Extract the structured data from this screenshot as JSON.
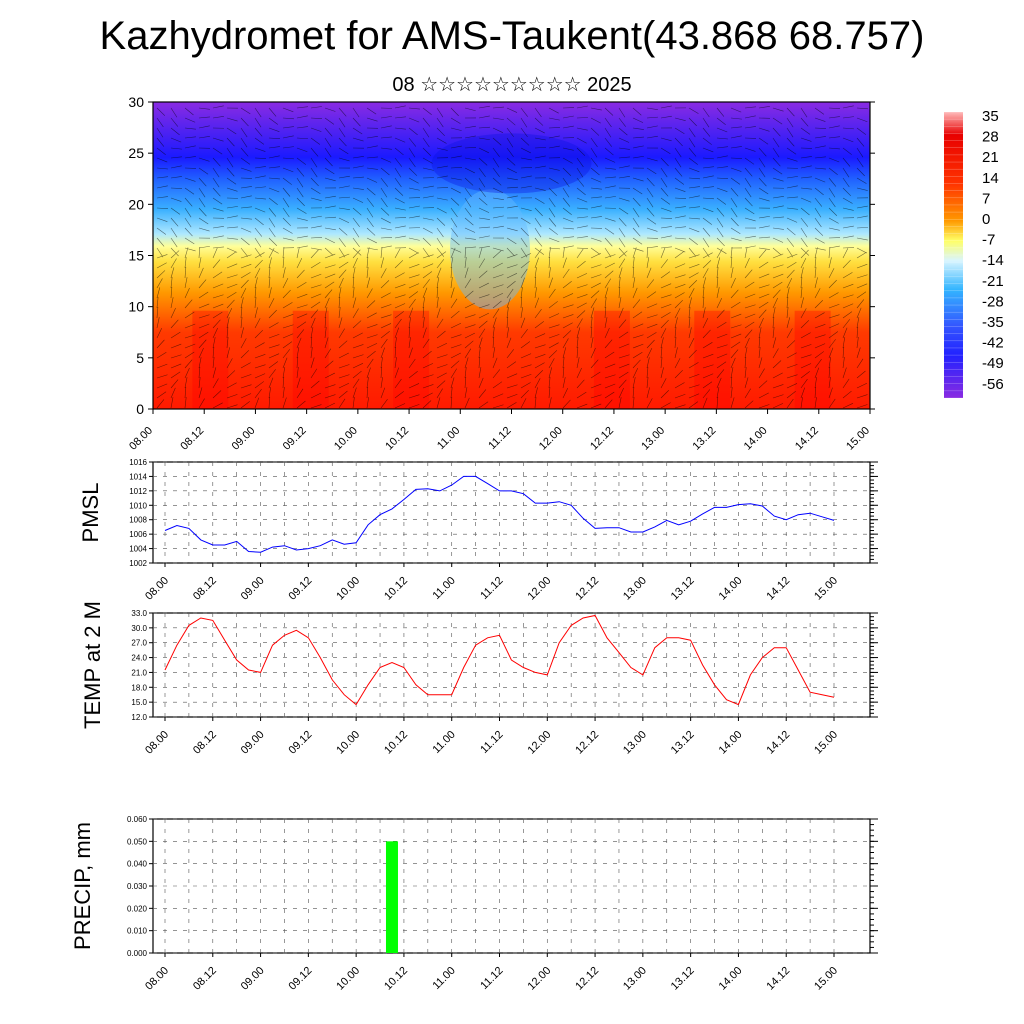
{
  "title": "Kazhydromet for AMS-Taukent(43.868 68.757)",
  "subtitle": "08 ☆☆☆☆☆☆☆☆☆ 2025",
  "time_ticks": [
    "08.00",
    "08.12",
    "09.00",
    "09.12",
    "10.00",
    "10.12",
    "11.00",
    "11.12",
    "12.00",
    "12.12",
    "13.00",
    "13.12",
    "14.00",
    "14.12",
    "15.00"
  ],
  "chart_data": [
    {
      "type": "heatmap",
      "title": "",
      "xlabel": "",
      "ylabel": "",
      "ylim": [
        0,
        30
      ],
      "y_ticks": [
        "0",
        "5",
        "10",
        "15",
        "20",
        "25",
        "30"
      ],
      "colorbar_labels": [
        "35",
        "28",
        "21",
        "14",
        "7",
        "0",
        "-7",
        "-14",
        "-21",
        "-28",
        "-35",
        "-42",
        "-49",
        "-56"
      ],
      "colors": [
        "#ff0000",
        "#ff8800",
        "#ffff66",
        "#55ccff",
        "#0044ff",
        "#8a2be2"
      ],
      "description_values": {
        "min": -56,
        "max": 35
      }
    },
    {
      "type": "line",
      "ylabel": "PMSL",
      "ylim": [
        1002,
        1016
      ],
      "y_ticks": [
        "1002",
        "1004",
        "1006",
        "1008",
        "1010",
        "1012",
        "1014",
        "1016"
      ],
      "color": "#0000ff",
      "series": [
        {
          "values": [
            1006.5,
            1007.2,
            1006.8,
            1005.2,
            1004.5,
            1004.5,
            1005.0,
            1003.6,
            1003.5,
            1004.2,
            1004.4,
            1003.8,
            1004.0,
            1004.4,
            1005.2,
            1004.6,
            1004.8,
            1007.3,
            1008.7,
            1009.5,
            1010.8,
            1012.2,
            1012.3,
            1012.0,
            1012.8,
            1014.0,
            1014.0,
            1013.0,
            1012.0,
            1012.0,
            1011.6,
            1010.3,
            1010.3,
            1010.5,
            1010.0,
            1008.2,
            1006.8,
            1006.9,
            1006.9,
            1006.3,
            1006.3,
            1007.0,
            1007.9,
            1007.3,
            1007.8,
            1008.8,
            1009.7,
            1009.7,
            1010.1,
            1010.2,
            1009.9,
            1008.5,
            1008.0,
            1008.7,
            1008.9,
            1008.4,
            1007.9
          ]
        }
      ]
    },
    {
      "type": "line",
      "ylabel": "TEMP at 2 M",
      "ylim": [
        12,
        33
      ],
      "y_ticks": [
        "12.0",
        "15.0",
        "18.0",
        "21.0",
        "24.0",
        "27.0",
        "30.0",
        "33.0"
      ],
      "color": "#ff0000",
      "series": [
        {
          "values": [
            21.5,
            26.5,
            30.5,
            32.0,
            31.5,
            27.5,
            23.5,
            21.5,
            21.0,
            26.5,
            28.5,
            29.5,
            28.0,
            24.0,
            19.5,
            16.5,
            14.5,
            18.5,
            22.0,
            23.0,
            22.0,
            18.5,
            16.5,
            16.5,
            16.5,
            22.0,
            26.5,
            28.0,
            28.5,
            23.5,
            22.0,
            21.0,
            20.5,
            27.0,
            30.5,
            32.0,
            32.5,
            28.0,
            25.0,
            22.0,
            20.5,
            26.0,
            28.0,
            28.0,
            27.5,
            22.5,
            18.5,
            15.5,
            14.5,
            20.5,
            24.0,
            26.0,
            26.0,
            21.5,
            17.0,
            16.5,
            16.0
          ]
        }
      ]
    },
    {
      "type": "bar",
      "ylabel": "PRECIP, mm",
      "ylim": [
        0,
        0.06
      ],
      "y_ticks": [
        "0.000",
        "0.010",
        "0.020",
        "0.030",
        "0.040",
        "0.050",
        "0.060"
      ],
      "color": "#00ff00",
      "bars": [
        {
          "x": "10.09",
          "value": 0.05
        }
      ]
    }
  ]
}
